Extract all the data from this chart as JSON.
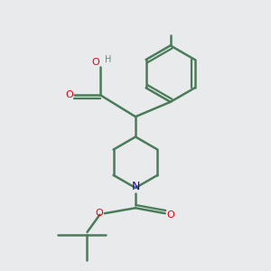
{
  "background_color": "#e8eaec",
  "bond_color": "#4a7c59",
  "bond_width": 1.8,
  "atom_colors": {
    "O": "#e8000e",
    "N": "#2200cc",
    "C": "#4a7c59",
    "H": "#6a8a7a"
  },
  "figsize": [
    3.0,
    3.0
  ],
  "dpi": 100,
  "xlim": [
    0,
    10
  ],
  "ylim": [
    0,
    10
  ]
}
